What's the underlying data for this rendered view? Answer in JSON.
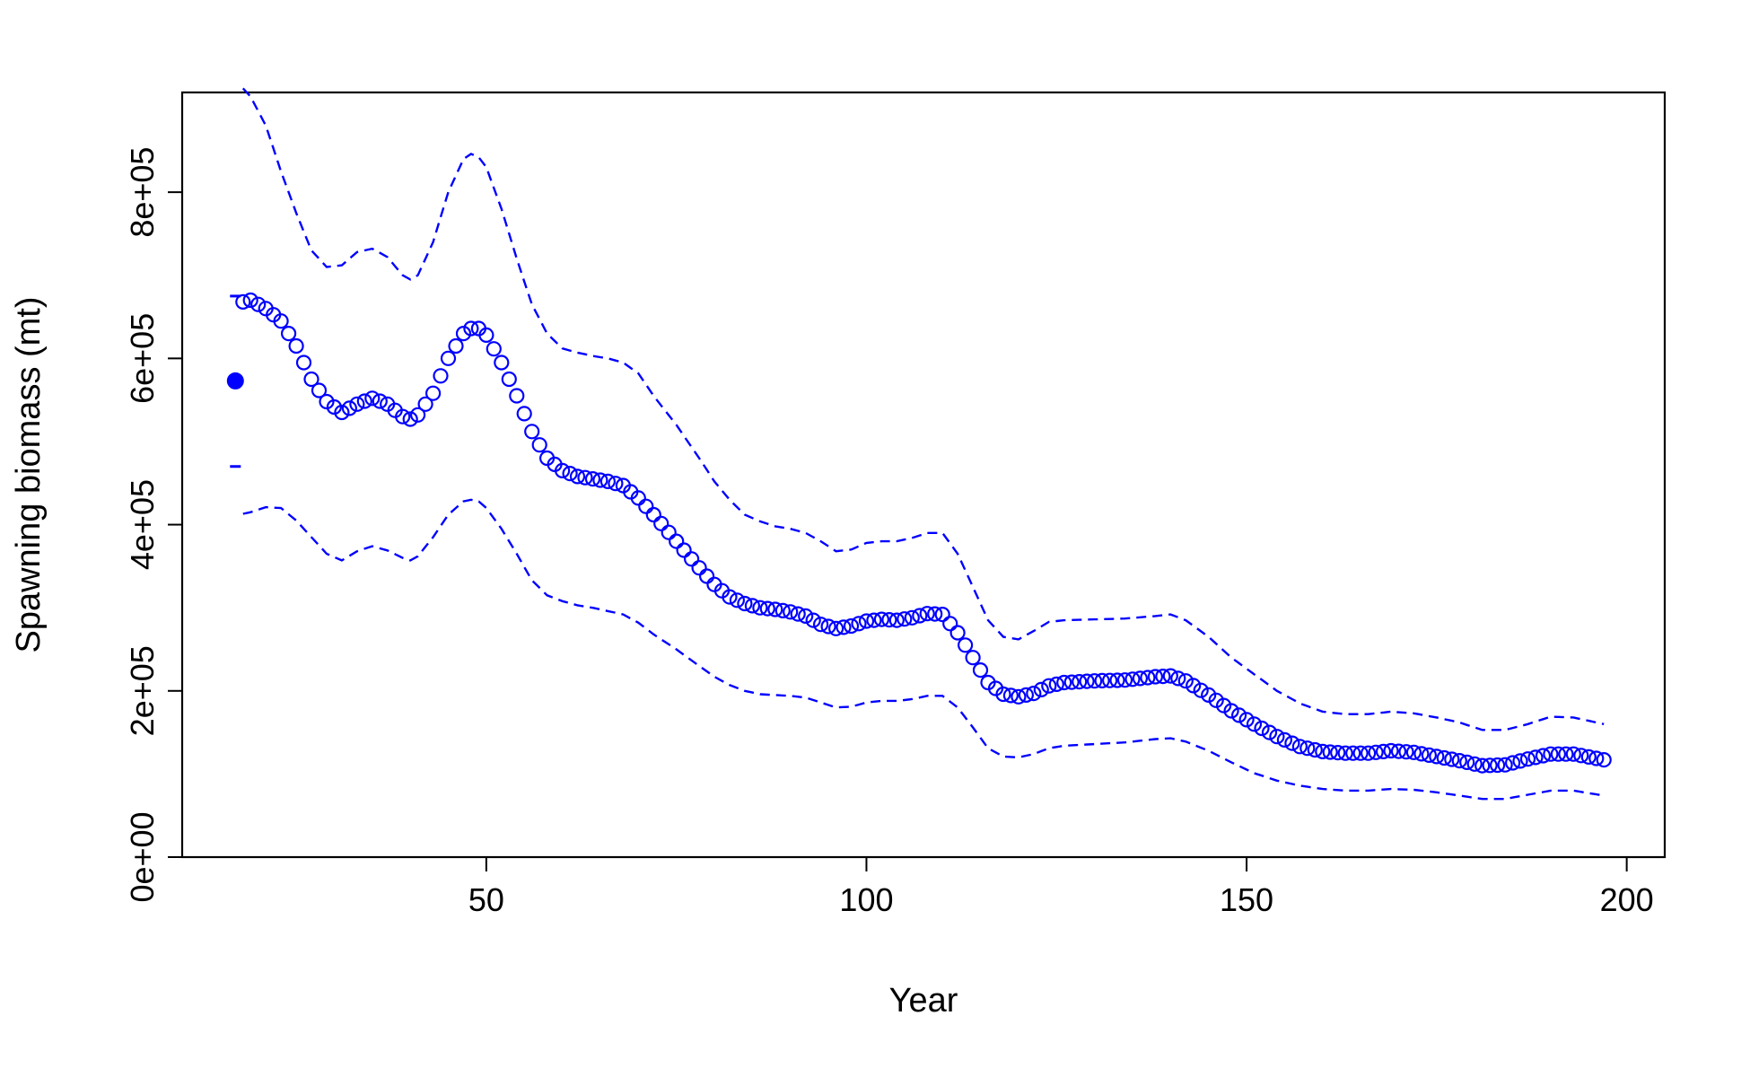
{
  "chart_data": {
    "type": "line",
    "title": "",
    "xlabel": "Year",
    "ylabel": "Spawning biomass (mt)",
    "xlim": [
      10,
      205
    ],
    "ylim": [
      0,
      920000
    ],
    "x_ticks": [
      50,
      100,
      150,
      200
    ],
    "x_tick_labels": [
      "50",
      "100",
      "150",
      "200"
    ],
    "y_ticks": [
      0,
      200000,
      400000,
      600000,
      800000
    ],
    "y_tick_labels": [
      "0e+00",
      "2e+05",
      "4e+05",
      "6e+05",
      "8e+05"
    ],
    "grid": false,
    "legend": "none",
    "colors": {
      "series": "#0000ff",
      "axes": "#000000"
    },
    "virgin_point": {
      "x": 17,
      "value": 573000,
      "upper": 675000,
      "lower": 470000
    },
    "anchors": {
      "x": [
        18,
        19,
        21,
        23,
        25,
        27,
        29,
        31,
        33,
        35,
        37,
        39,
        40,
        41,
        43,
        45,
        47,
        48,
        49,
        50,
        52,
        54,
        56,
        58,
        60,
        62,
        64,
        66,
        68,
        70,
        72,
        75,
        78,
        80,
        82,
        84,
        86,
        88,
        90,
        92,
        94,
        96,
        98,
        100,
        102,
        104,
        106,
        108,
        110,
        112,
        114,
        116,
        118,
        120,
        122,
        124,
        126,
        130,
        134,
        138,
        140,
        142,
        145,
        148,
        151,
        154,
        157,
        160,
        163,
        166,
        169,
        172,
        175,
        178,
        181,
        184,
        187,
        190,
        193,
        197
      ],
      "value": [
        668000,
        670000,
        660000,
        645000,
        615000,
        575000,
        548000,
        535000,
        545000,
        552000,
        545000,
        530000,
        527000,
        532000,
        558000,
        600000,
        630000,
        636000,
        636000,
        628000,
        595000,
        555000,
        512000,
        480000,
        465000,
        458000,
        455000,
        452000,
        447000,
        432000,
        412000,
        380000,
        348000,
        328000,
        313000,
        305000,
        300000,
        298000,
        295000,
        290000,
        280000,
        275000,
        278000,
        284000,
        286000,
        285000,
        288000,
        293000,
        292000,
        270000,
        240000,
        210000,
        196000,
        193000,
        197000,
        206000,
        210000,
        212000,
        213000,
        217000,
        218000,
        212000,
        195000,
        176000,
        160000,
        145000,
        133000,
        127000,
        125000,
        125000,
        128000,
        126000,
        121000,
        116000,
        110000,
        111000,
        118000,
        124000,
        124000,
        117000
      ],
      "upper": [
        925000,
        915000,
        880000,
        825000,
        775000,
        730000,
        710000,
        712000,
        728000,
        732000,
        722000,
        700000,
        695000,
        700000,
        740000,
        800000,
        840000,
        846000,
        842000,
        830000,
        780000,
        720000,
        665000,
        630000,
        612000,
        607000,
        603000,
        600000,
        595000,
        582000,
        555000,
        520000,
        480000,
        452000,
        430000,
        412000,
        404000,
        398000,
        395000,
        390000,
        380000,
        368000,
        370000,
        378000,
        380000,
        380000,
        384000,
        390000,
        390000,
        365000,
        325000,
        285000,
        265000,
        262000,
        272000,
        283000,
        285000,
        286000,
        287000,
        290000,
        292000,
        285000,
        265000,
        240000,
        220000,
        200000,
        185000,
        175000,
        172000,
        172000,
        175000,
        173000,
        168000,
        162000,
        153000,
        153000,
        160000,
        169000,
        168000,
        160000
      ],
      "lower": [
        413000,
        415000,
        421000,
        420000,
        405000,
        385000,
        365000,
        357000,
        368000,
        374000,
        369000,
        360000,
        357000,
        362000,
        385000,
        412000,
        428000,
        430000,
        428000,
        420000,
        395000,
        365000,
        333000,
        315000,
        308000,
        303000,
        300000,
        296000,
        292000,
        282000,
        268000,
        250000,
        230000,
        217000,
        207000,
        200000,
        196000,
        195000,
        194000,
        192000,
        186000,
        180000,
        181000,
        186000,
        188000,
        188000,
        190000,
        194000,
        194000,
        180000,
        156000,
        131000,
        121000,
        120000,
        124000,
        131000,
        134000,
        136000,
        138000,
        142000,
        143000,
        139000,
        128000,
        114000,
        101000,
        92000,
        86000,
        82000,
        80000,
        80000,
        82000,
        81000,
        78000,
        74000,
        70000,
        70000,
        75000,
        80000,
        80000,
        74000
      ]
    }
  }
}
